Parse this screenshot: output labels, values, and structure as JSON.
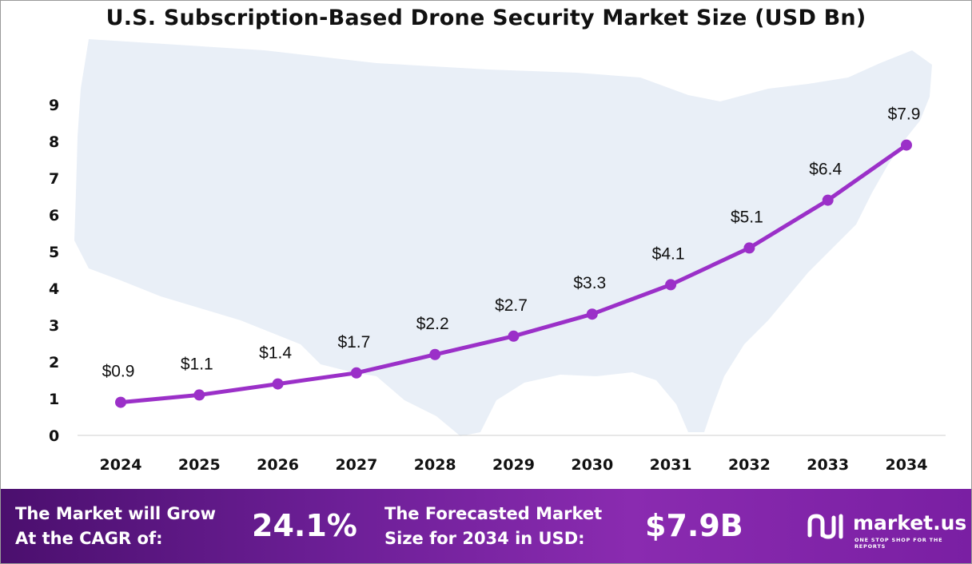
{
  "chart_data": {
    "type": "line",
    "title": "U.S. Subscription-Based Drone Security Market Size (USD Bn)",
    "categories": [
      "2024",
      "2025",
      "2026",
      "2027",
      "2028",
      "2029",
      "2030",
      "2031",
      "2032",
      "2033",
      "2034"
    ],
    "values": [
      0.9,
      1.1,
      1.4,
      1.7,
      2.2,
      2.7,
      3.3,
      4.1,
      5.1,
      6.4,
      7.9
    ],
    "data_labels": [
      "$0.9",
      "$1.1",
      "$1.4",
      "$1.7",
      "$2.2",
      "$2.7",
      "$3.3",
      "$4.1",
      "$5.1",
      "$6.4",
      "$7.9"
    ],
    "yticks": [
      "0",
      "1",
      "2",
      "3",
      "4",
      "5",
      "6",
      "7",
      "8",
      "9"
    ],
    "ylim": [
      0,
      9
    ],
    "xlabel": "",
    "ylabel": "",
    "grid": false,
    "line_color": "#9b30c8"
  },
  "footer": {
    "cagr_text_line1": "The Market will Grow",
    "cagr_text_line2": "At the CAGR of:",
    "cagr_value": "24.1%",
    "forecast_text_line1": "The Forecasted Market",
    "forecast_text_line2": "Size for 2034 in USD:",
    "forecast_value": "$7.9B",
    "brand_name": "market.us",
    "brand_tagline": "ONE STOP SHOP FOR THE REPORTS"
  }
}
